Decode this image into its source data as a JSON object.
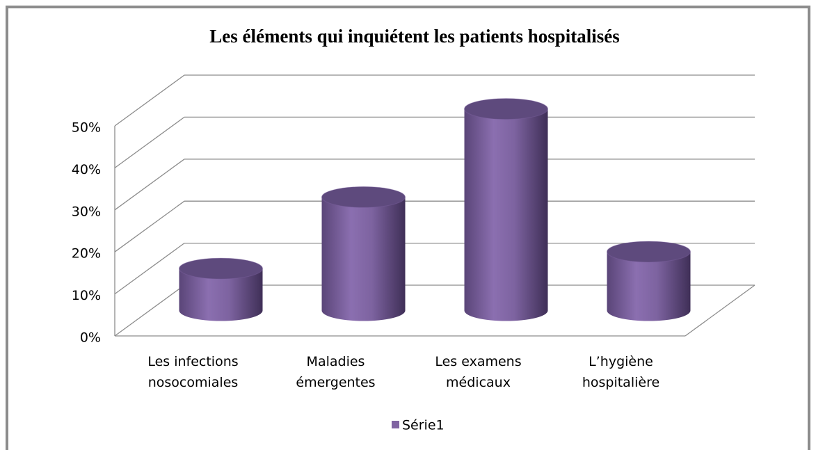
{
  "chart_data": {
    "type": "bar3d",
    "title": "Les éléments qui inquiétent les patients hospitalisés",
    "categories": [
      "Les infections\nnosocomiales",
      "Maladies\némergentes",
      "Les examens\nmédicaux",
      "L’hygiène\nhospitalière"
    ],
    "series": [
      {
        "name": "Série1",
        "color": "#8064a2",
        "values": [
          10,
          27,
          48,
          14
        ]
      }
    ],
    "ylim": [
      0,
      50
    ],
    "yticks": [
      {
        "value": 0,
        "label": "0%"
      },
      {
        "value": 10,
        "label": "10%"
      },
      {
        "value": 20,
        "label": "20%"
      },
      {
        "value": 30,
        "label": "30%"
      },
      {
        "value": 40,
        "label": "40%"
      },
      {
        "value": 50,
        "label": "50%"
      }
    ],
    "grid": true,
    "legend": "bottom"
  }
}
